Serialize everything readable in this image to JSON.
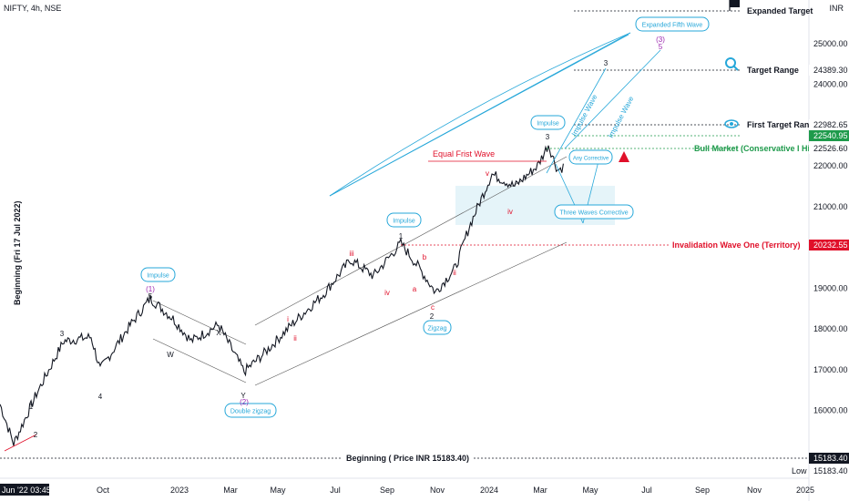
{
  "header": {
    "symbol": "NIFTY, 4h, NSE",
    "currency": "INR"
  },
  "left_label": "Beginning (Fri 17 Jul 2022)",
  "chart_data": {
    "type": "line",
    "title": "",
    "xlabel": "",
    "ylabel": "",
    "ylim": [
      15100,
      25500
    ],
    "x_ticks": [
      "Jun '22",
      "Oct",
      "2023",
      "Mar",
      "May",
      "Jul",
      "Sep",
      "Nov",
      "2024",
      "Mar",
      "May",
      "Jul",
      "Sep",
      "Nov",
      "2025"
    ],
    "y_ticks": [
      16000,
      17000,
      18000,
      19000,
      20000,
      21000,
      22000,
      23000,
      24000,
      25000
    ],
    "start_time_label": "Jun '22  03:45",
    "series": [
      {
        "name": "",
        "points": [
          [
            0,
            16150
          ],
          [
            15,
            15183
          ],
          [
            40,
            16400
          ],
          [
            70,
            17700
          ],
          [
            100,
            17800
          ],
          [
            110,
            17000
          ],
          [
            140,
            18000
          ],
          [
            165,
            18750
          ],
          [
            190,
            18250
          ],
          [
            210,
            17700
          ],
          [
            240,
            18100
          ],
          [
            268,
            16950
          ],
          [
            290,
            17400
          ],
          [
            320,
            18100
          ],
          [
            355,
            18850
          ],
          [
            385,
            19700
          ],
          [
            410,
            19300
          ],
          [
            440,
            20100
          ],
          [
            460,
            19500
          ],
          [
            478,
            18900
          ],
          [
            500,
            19500
          ],
          [
            515,
            20500
          ],
          [
            540,
            21800
          ],
          [
            565,
            21500
          ],
          [
            590,
            22000
          ],
          [
            602,
            22526
          ],
          [
            612,
            21900
          ],
          [
            620,
            22000
          ]
        ]
      }
    ],
    "price_levels": [
      {
        "label": "Expanded Target",
        "price": ""
      },
      {
        "label": "Target Range",
        "price": "24389.30"
      },
      {
        "label": "First Target Range",
        "price": "22982.65"
      },
      {
        "label": "",
        "price": "22540.95"
      },
      {
        "label": "Bull Market (Conservative I High",
        "price": "22526.60"
      },
      {
        "label": "Invalidation Wave One (Territory)",
        "price": "20232.55"
      },
      {
        "label": "Beginning ( Price INR 15183.40)",
        "price": "15183.40"
      }
    ],
    "low_label": "Low",
    "low_price": "15183.40",
    "annotations": {
      "boxes": [
        "Impulse",
        "Impulse",
        "Impulse",
        "Double zigzag",
        "Zigzag",
        "Three Waves Corrective",
        "Any Corrective",
        "Expanded Fifth Wave"
      ],
      "waves": [
        "1",
        "2",
        "3",
        "4",
        "5",
        "(1)",
        "W",
        "X",
        "Y",
        "(2)",
        "i",
        "ii",
        "iii",
        "iv",
        "a",
        "b",
        "c",
        "v",
        "3",
        "(3)"
      ],
      "diagonal_labels": [
        "Impulse Wave",
        "Impulse Wave"
      ],
      "red_label": "Equal Frist Wave"
    },
    "colors": {
      "wave_blue": "#26a7d9",
      "wave_red": "#e0102a",
      "purple": "#9c27b0",
      "green": "#1e9a4b",
      "price": "#131722"
    }
  }
}
